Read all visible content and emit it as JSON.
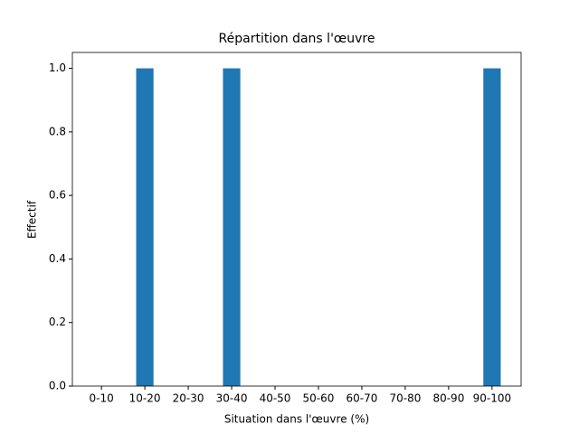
{
  "chart_data": {
    "type": "bar",
    "title": "Répartition dans l'œuvre",
    "x_label": "Situation dans l'œuvre (%)",
    "y_label": "Effectif",
    "categories": [
      "0-10",
      "10-20",
      "20-30",
      "30-40",
      "40-50",
      "50-60",
      "60-70",
      "70-80",
      "80-90",
      "90-100"
    ],
    "values": [
      0,
      1,
      0,
      1,
      0,
      0,
      0,
      0,
      0,
      1
    ],
    "color": "#1f77b4",
    "ylim": [
      0,
      1.05
    ],
    "yticks": [
      {
        "value": 0,
        "label": "0.0"
      },
      {
        "value": 0.2,
        "label": "0.2"
      },
      {
        "value": 0.4,
        "label": "0.4"
      },
      {
        "value": 0.6,
        "label": "0.6"
      },
      {
        "value": 0.8,
        "label": "0.8"
      },
      {
        "value": 1,
        "label": "1.0"
      }
    ],
    "grid": false
  }
}
